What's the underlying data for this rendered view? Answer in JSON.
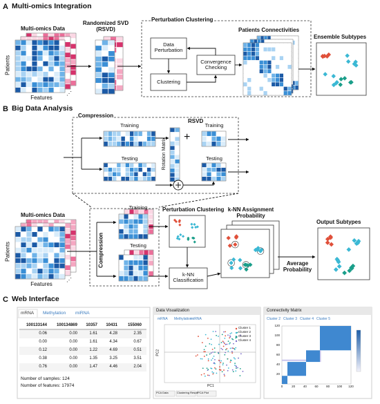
{
  "a": {
    "letter": "A",
    "title": "Multi-omics Integration",
    "data": "Multi-omics Data",
    "patients": "Patients",
    "features": "Features",
    "rsvd": "Randomized SVD (RSVD)",
    "pc": "Perturbation Clustering",
    "perturb": "Data Perturbation",
    "clustering": "Clustering",
    "convergence": "Convergence Checking",
    "connect": "Patients Connectivities",
    "subtypes": "Ensemble Subtypes"
  },
  "b": {
    "letter": "B",
    "title": "Big Data Analysis",
    "compression": "Compression",
    "training": "Training",
    "testing": "Testing",
    "rotation": "Rotation Matrix",
    "rsvd": "RSVD",
    "plus": "+",
    "training2": "Training",
    "testing2": "Testing",
    "data": "Multi-omics Data",
    "patients": "Patients",
    "features": "Features",
    "compression2": "Compression",
    "training3": "Training",
    "testing3": "Testing",
    "pc": "Perturbation Clustering",
    "knn": "k-NN Classification",
    "knn_prob": "k-NN Assignment Probability",
    "average": "Average Probability",
    "output": "Output Subtypes"
  },
  "c": {
    "letter": "C",
    "title": "Web Interface",
    "table": {
      "tabs": [
        "mRNA",
        "Methylation",
        "miRNA"
      ],
      "columns": [
        "100133144",
        "100134869",
        "10357",
        "10431",
        "155060"
      ],
      "rows": [
        [
          "0.06",
          "0.00",
          "1.61",
          "4.28",
          "2.35"
        ],
        [
          "0.00",
          "0.00",
          "1.61",
          "4.34",
          "0.67"
        ],
        [
          "0.12",
          "0.00",
          "1.22",
          "4.69",
          "0.51"
        ],
        [
          "0.38",
          "0.00",
          "1.35",
          "3.25",
          "3.51"
        ],
        [
          "0.76",
          "0.00",
          "1.47",
          "4.46",
          "2.04"
        ]
      ],
      "samples": "Number of samples: 124",
      "features": "Number of features: 17974"
    },
    "viz": {
      "title": "Data Visualization",
      "tabs": [
        "mRNA",
        "Methylation",
        "miRNA"
      ],
      "legend": [
        "Cluster 1",
        "Cluster 2",
        "Cluster 3",
        "Cluster 4"
      ],
      "xlabel": "PC1",
      "ylabel": "PC2",
      "buttons": [
        "PCA Data",
        "Clustering Result",
        "PCA Plot"
      ]
    },
    "matrix": {
      "title": "Connectivity Matrix",
      "tabs": [
        "Cluster 2",
        "Cluster 3",
        "Cluster 4",
        "Cluster 5"
      ],
      "xticks": [
        "0",
        "20",
        "40",
        "60",
        "80",
        "100",
        "120"
      ],
      "yticks": [
        "120",
        "100",
        "80",
        "60",
        "40",
        "20"
      ]
    }
  }
}
